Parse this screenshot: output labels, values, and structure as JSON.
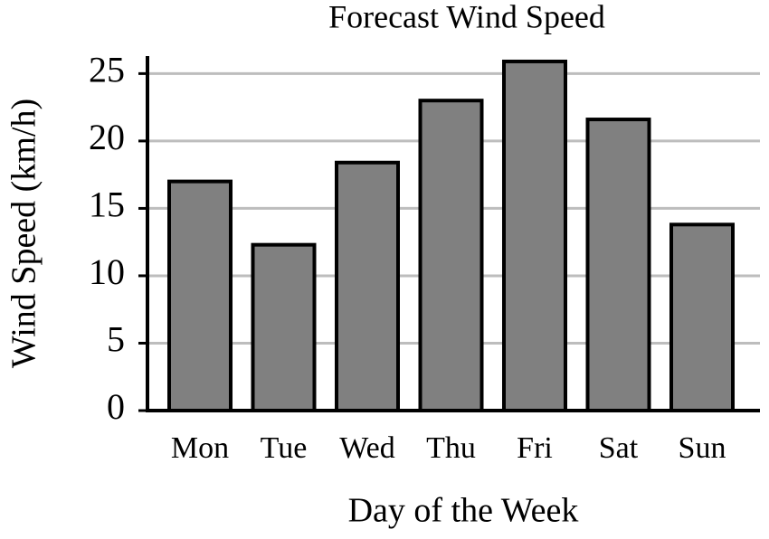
{
  "chart_data": {
    "type": "bar",
    "title": "Forecast Wind Speed",
    "x_label": "Day of the Week",
    "y_label": "Wind Speed (km/h)",
    "categories": [
      "Mon",
      "Tue",
      "Wed",
      "Thu",
      "Fri",
      "Sat",
      "Sun"
    ],
    "values": [
      17,
      12.3,
      18.4,
      23,
      25.9,
      21.6,
      13.8
    ],
    "color": "#808080",
    "ylim": [
      0,
      26.3
    ],
    "yticks": [
      0,
      5,
      10,
      15,
      20,
      25
    ],
    "grid": true
  }
}
